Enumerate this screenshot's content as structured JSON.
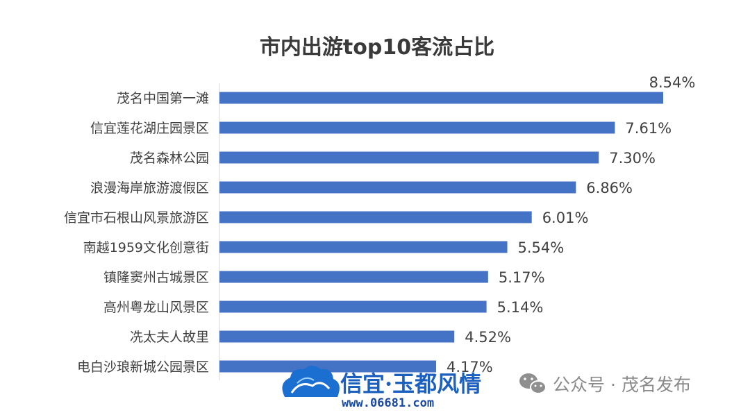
{
  "chart_data": {
    "type": "bar",
    "orientation": "horizontal",
    "title": "市内出游top10客流占比",
    "categories": [
      "茂名中国第一滩",
      "信宜莲花湖庄园景区",
      "茂名森林公园",
      "浪漫海岸旅游渡假区",
      "信宜市石根山风景旅游区",
      "南越1959文化创意街",
      "镇隆窦州古城景区",
      "高州粤龙山风景区",
      "冼太夫人故里",
      "电白沙琅新城公园景区"
    ],
    "values": [
      8.54,
      7.61,
      7.3,
      6.86,
      6.01,
      5.54,
      5.17,
      5.14,
      4.52,
      4.17
    ],
    "value_labels": [
      "8.54%",
      "7.61%",
      "7.30%",
      "6.86%",
      "6.01%",
      "5.54%",
      "5.17%",
      "5.14%",
      "4.52%",
      "4.17%"
    ],
    "xlim": [
      0,
      8.54
    ],
    "bar_color": "#4472c4",
    "grid": false,
    "legend": "none"
  },
  "watermarks": {
    "logo_text": "信宜·玉都风情",
    "logo_url": "www.06681.com",
    "wechat_label": "公众号 · 茂名发布",
    "logo_color": "#1b5fbf",
    "wechat_icon": "wechat-icon"
  }
}
